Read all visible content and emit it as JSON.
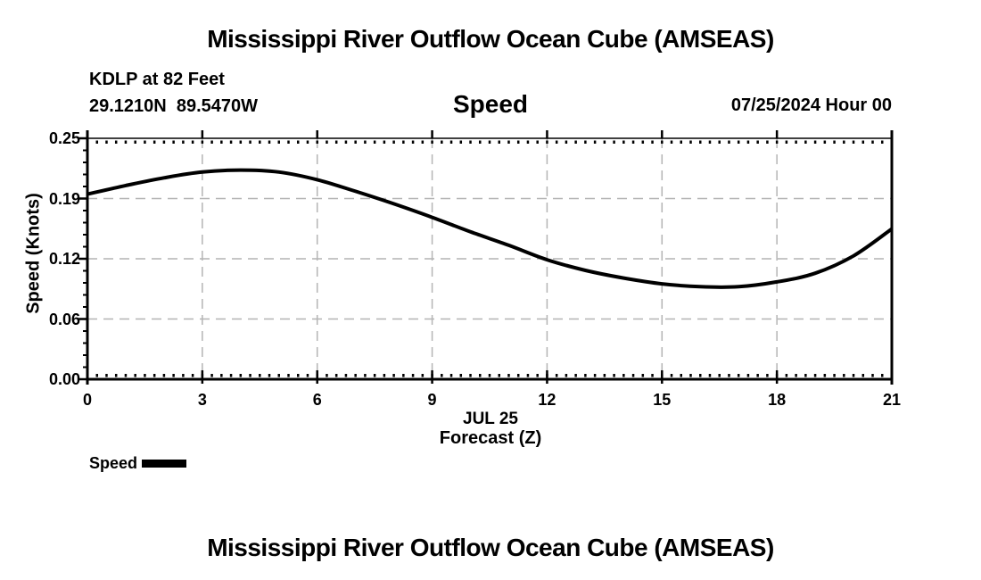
{
  "page": {
    "background": "#ffffff",
    "text_color": "#000000"
  },
  "header": {
    "title": "Mississippi River Outflow Ocean Cube (AMSEAS)",
    "station": "KDLP at 82 Feet",
    "coordinates": "29.1210N  89.5470W",
    "panel_title": "Speed",
    "run_label": "07/25/2024 Hour 00"
  },
  "footer": {
    "title": "Mississippi River Outflow Ocean Cube (AMSEAS)"
  },
  "legend": {
    "label": "Speed",
    "swatch_color": "#000000"
  },
  "chart_data": {
    "type": "line",
    "title": "Speed",
    "xlabel": "Forecast (Z)",
    "x_axis_date": "JUL 25",
    "ylabel": "Speed (Knots)",
    "xlim": [
      0,
      21
    ],
    "ylim": [
      0,
      0.25
    ],
    "x_ticks": [
      {
        "value": 0,
        "label": "0"
      },
      {
        "value": 3,
        "label": "3"
      },
      {
        "value": 6,
        "label": "6"
      },
      {
        "value": 9,
        "label": "9"
      },
      {
        "value": 12,
        "label": "12"
      },
      {
        "value": 15,
        "label": "15"
      },
      {
        "value": 18,
        "label": "18"
      },
      {
        "value": 21,
        "label": "21"
      }
    ],
    "y_ticks": [
      {
        "value": 0,
        "label": "0.00"
      },
      {
        "value": 0.0625,
        "label": "0.06"
      },
      {
        "value": 0.125,
        "label": "0.12"
      },
      {
        "value": 0.1875,
        "label": "0.19"
      },
      {
        "value": 0.25,
        "label": "0.25"
      }
    ],
    "x_minor_step": 0.25,
    "y_minor_step": 0.0125,
    "grid": {
      "show": true,
      "style": "dashed",
      "color": "#b4b4b4"
    },
    "legend_position": "bottom-left",
    "series": [
      {
        "name": "Speed",
        "color": "#000000",
        "x": [
          0,
          1,
          2,
          3,
          4,
          5,
          6,
          7,
          8,
          9,
          10,
          11,
          12,
          13,
          14,
          15,
          16,
          17,
          18,
          19,
          20,
          21
        ],
        "values": [
          0.192,
          0.201,
          0.209,
          0.215,
          0.217,
          0.215,
          0.207,
          0.195,
          0.182,
          0.168,
          0.153,
          0.139,
          0.124,
          0.113,
          0.105,
          0.099,
          0.096,
          0.096,
          0.101,
          0.11,
          0.128,
          0.156
        ]
      }
    ]
  }
}
